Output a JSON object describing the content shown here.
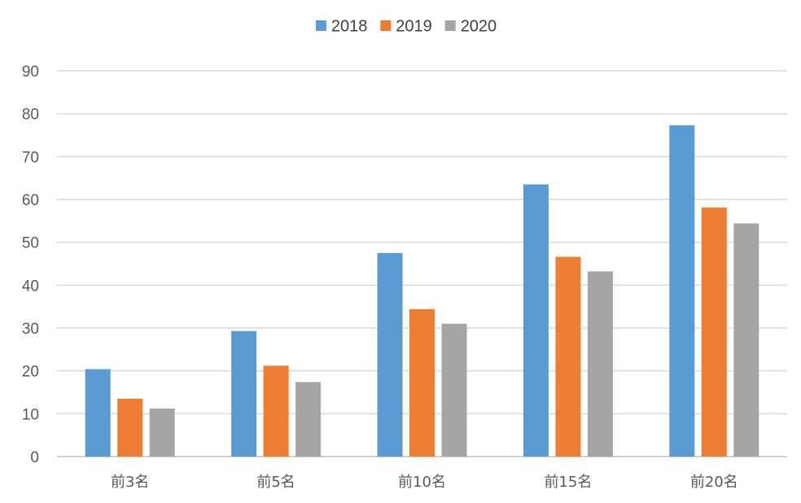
{
  "chart_data": {
    "type": "bar",
    "title": "",
    "xlabel": "",
    "ylabel": "",
    "categories": [
      "前3名",
      "前5名",
      "前10名",
      "前15名",
      "前20名"
    ],
    "series": [
      {
        "name": "2018",
        "color": "#5B9BD5",
        "values": [
          20.4,
          29.3,
          47.5,
          63.5,
          77.3
        ]
      },
      {
        "name": "2019",
        "color": "#ED7D31",
        "values": [
          13.5,
          21.2,
          34.4,
          46.6,
          58.1
        ]
      },
      {
        "name": "2020",
        "color": "#A5A5A5",
        "values": [
          11.2,
          17.4,
          31.0,
          43.2,
          54.4
        ]
      }
    ],
    "ylim": [
      0,
      90
    ],
    "yticks": [
      "0",
      "10",
      "20",
      "30",
      "40",
      "50",
      "60",
      "70",
      "80",
      "90"
    ],
    "grid": true,
    "legend_position": "top-center"
  }
}
